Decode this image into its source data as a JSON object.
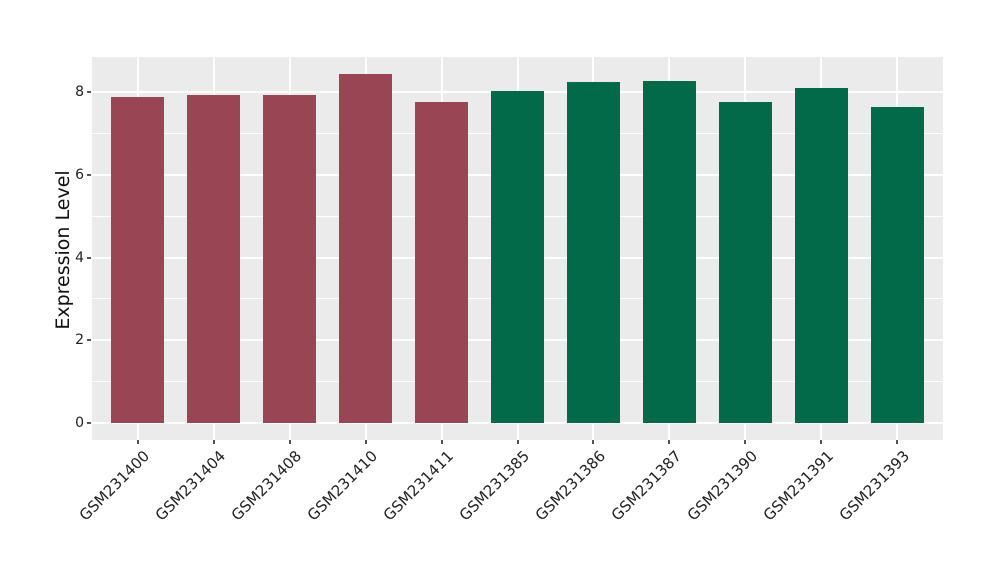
{
  "figure": {
    "background": "#ffffff",
    "panel_background": "#ebebeb",
    "gridline_color": "#ffffff",
    "tick_mark_color": "#555555",
    "tick_label_color": "#222222",
    "axis_title_color": "#111111"
  },
  "chart_data": {
    "type": "bar",
    "title": "",
    "xlabel": "",
    "ylabel": "Expression Level",
    "categories": [
      "GSM231400",
      "GSM231404",
      "GSM231408",
      "GSM231410",
      "GSM231411",
      "GSM231385",
      "GSM231386",
      "GSM231387",
      "GSM231390",
      "GSM231391",
      "GSM231393"
    ],
    "values": [
      7.9,
      7.95,
      7.95,
      8.45,
      7.76,
      8.04,
      8.25,
      8.28,
      7.78,
      8.11,
      7.64
    ],
    "bar_colors": [
      "#9a4553",
      "#9a4553",
      "#9a4553",
      "#9a4553",
      "#9a4553",
      "#026a48",
      "#026a48",
      "#026a48",
      "#026a48",
      "#026a48",
      "#026a48"
    ],
    "color_groups": [
      {
        "color": "#9a4553",
        "categories": [
          "GSM231400",
          "GSM231404",
          "GSM231408",
          "GSM231410",
          "GSM231411"
        ]
      },
      {
        "color": "#026a48",
        "categories": [
          "GSM231385",
          "GSM231386",
          "GSM231387",
          "GSM231390",
          "GSM231391",
          "GSM231393"
        ]
      }
    ],
    "yticks": [
      0,
      2,
      4,
      6,
      8
    ],
    "yticks_minor": [
      1,
      3,
      5,
      7
    ],
    "ylim": [
      -0.42,
      8.86
    ],
    "grid": true,
    "legend_position": "none"
  }
}
